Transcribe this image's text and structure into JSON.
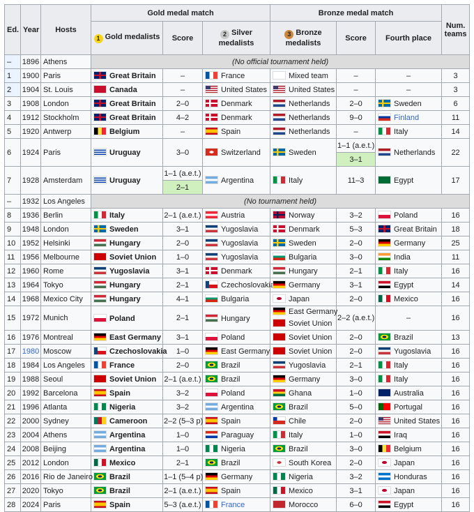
{
  "header": {
    "ed": "Ed.",
    "year": "Year",
    "hosts": "Hosts",
    "gold_match": "Gold medal match",
    "bronze_match": "Bronze medal match",
    "num_teams": "Num. teams",
    "gold": "Gold medalists",
    "score": "Score",
    "silver": "Silver medalists",
    "bronze": "Bronze medalists",
    "score2": "Score",
    "fourth": "Fourth place",
    "medal1": "1",
    "medal2": "2",
    "medal3": "3"
  },
  "rows": [
    {
      "ed": "–",
      "year": "1896",
      "host": "Athens",
      "note": "(No official tournament held)"
    },
    {
      "ed": "1",
      "year": "1900",
      "host": "Paris",
      "gold": [
        "Great Britain",
        "gb"
      ],
      "score": "–",
      "silver": [
        "France",
        "fr"
      ],
      "bronze": [
        [
          "Mixed team",
          "ol"
        ]
      ],
      "score2": "–",
      "fourth": null,
      "teams": "3"
    },
    {
      "ed": "2",
      "year": "1904",
      "host": "St. Louis",
      "gold": [
        "Canada",
        "ca"
      ],
      "score": "–",
      "silver": [
        "United States",
        "us"
      ],
      "bronze": [
        [
          "United States",
          "us"
        ]
      ],
      "score2": "–",
      "fourth": null,
      "teams": "3"
    },
    {
      "ed": "3",
      "year": "1908",
      "host": "London",
      "gold": [
        "Great Britain",
        "gb"
      ],
      "score": "2–0",
      "silver": [
        "Denmark",
        "dk"
      ],
      "bronze": [
        [
          "Netherlands",
          "nl"
        ]
      ],
      "score2": "2–0",
      "fourth": [
        "Sweden",
        "se"
      ],
      "teams": "6"
    },
    {
      "ed": "4",
      "year": "1912",
      "host": "Stockholm",
      "gold": [
        "Great Britain",
        "gb"
      ],
      "score": "4–2",
      "silver": [
        "Denmark",
        "dk"
      ],
      "bronze": [
        [
          "Netherlands",
          "nl"
        ]
      ],
      "score2": "9–0",
      "fourth": [
        "Finland",
        "ru"
      ],
      "fourth_link": true,
      "teams": "11"
    },
    {
      "ed": "5",
      "year": "1920",
      "host": "Antwerp",
      "gold": [
        "Belgium",
        "be"
      ],
      "score": "–",
      "silver": [
        "Spain",
        "es"
      ],
      "bronze": [
        [
          "Netherlands",
          "nl"
        ]
      ],
      "score2": "–",
      "fourth": [
        "Italy",
        "it"
      ],
      "teams": "14"
    },
    {
      "ed": "6",
      "year": "1924",
      "host": "Paris",
      "gold": [
        "Uruguay",
        "uy"
      ],
      "score": "3–0",
      "silver": [
        "Switzerland",
        "ch"
      ],
      "bronze": [
        [
          "Sweden",
          "se"
        ]
      ],
      "score2": "1–1 (a.e.t.)",
      "score2_replay": "3–1",
      "fourth": [
        "Netherlands",
        "nl"
      ],
      "teams": "22"
    },
    {
      "ed": "7",
      "year": "1928",
      "host": "Amsterdam",
      "gold": [
        "Uruguay",
        "uy"
      ],
      "score": "1–1 (a.e.t.)",
      "score_replay": "2–1",
      "silver": [
        "Argentina",
        "ar"
      ],
      "bronze": [
        [
          "Italy",
          "it"
        ]
      ],
      "score2": "11–3",
      "fourth": [
        "Egypt",
        "eg1"
      ],
      "teams": "17"
    },
    {
      "ed": "–",
      "year": "1932",
      "host": "Los Angeles",
      "note": "(No tournament held)"
    },
    {
      "ed": "8",
      "year": "1936",
      "host": "Berlin",
      "gold": [
        "Italy",
        "it"
      ],
      "score": "2–1 (a.e.t.)",
      "silver": [
        "Austria",
        "at"
      ],
      "bronze": [
        [
          "Norway",
          "no"
        ]
      ],
      "score2": "3–2",
      "fourth": [
        "Poland",
        "pl"
      ],
      "teams": "16"
    },
    {
      "ed": "9",
      "year": "1948",
      "host": "London",
      "gold": [
        "Sweden",
        "se"
      ],
      "score": "3–1",
      "silver": [
        "Yugoslavia",
        "yu"
      ],
      "bronze": [
        [
          "Denmark",
          "dk"
        ]
      ],
      "score2": "5–3",
      "fourth": [
        "Great Britain",
        "gb"
      ],
      "teams": "18"
    },
    {
      "ed": "10",
      "year": "1952",
      "host": "Helsinki",
      "gold": [
        "Hungary",
        "hu"
      ],
      "score": "2–0",
      "silver": [
        "Yugoslavia",
        "yu"
      ],
      "bronze": [
        [
          "Sweden",
          "se"
        ]
      ],
      "score2": "2–0",
      "fourth": [
        "Germany",
        "de"
      ],
      "teams": "25"
    },
    {
      "ed": "11",
      "year": "1956",
      "host": "Melbourne",
      "gold": [
        "Soviet Union",
        "su"
      ],
      "score": "1–0",
      "silver": [
        "Yugoslavia",
        "yu"
      ],
      "bronze": [
        [
          "Bulgaria",
          "bg"
        ]
      ],
      "score2": "3–0",
      "fourth": [
        "India",
        "in"
      ],
      "teams": "11"
    },
    {
      "ed": "12",
      "year": "1960",
      "host": "Rome",
      "gold": [
        "Yugoslavia",
        "yu"
      ],
      "score": "3–1",
      "silver": [
        "Denmark",
        "dk"
      ],
      "bronze": [
        [
          "Hungary",
          "hu"
        ]
      ],
      "score2": "2–1",
      "fourth": [
        "Italy",
        "it"
      ],
      "teams": "16"
    },
    {
      "ed": "13",
      "year": "1964",
      "host": "Tokyo",
      "gold": [
        "Hungary",
        "hu"
      ],
      "score": "2–1",
      "silver": [
        "Czechoslovakia",
        "cs"
      ],
      "bronze": [
        [
          "Germany",
          "de"
        ]
      ],
      "score2": "3–1",
      "fourth": [
        "Egypt",
        "eg"
      ],
      "teams": "14"
    },
    {
      "ed": "14",
      "year": "1968",
      "host": "Mexico City",
      "gold": [
        "Hungary",
        "hu"
      ],
      "score": "4–1",
      "silver": [
        "Bulgaria",
        "bg"
      ],
      "bronze": [
        [
          "Japan",
          "jp"
        ]
      ],
      "score2": "2–0",
      "fourth": [
        "Mexico",
        "mx"
      ],
      "teams": "16"
    },
    {
      "ed": "15",
      "year": "1972",
      "host": "Munich",
      "gold": [
        "Poland",
        "pl"
      ],
      "score": "2–1",
      "silver": [
        "Hungary",
        "hu"
      ],
      "bronze": [
        [
          "East Germany",
          "dd"
        ],
        [
          "Soviet Union",
          "su"
        ]
      ],
      "score2": "2–2 (a.e.t.)",
      "fourth": null,
      "teams": "16"
    },
    {
      "ed": "16",
      "year": "1976",
      "host": "Montreal",
      "gold": [
        "East Germany",
        "dd"
      ],
      "score": "3–1",
      "silver": [
        "Poland",
        "pl"
      ],
      "bronze": [
        [
          "Soviet Union",
          "su"
        ]
      ],
      "score2": "2–0",
      "fourth": [
        "Brazil",
        "br"
      ],
      "teams": "13"
    },
    {
      "ed": "17",
      "year": "1980",
      "year_link": true,
      "host": "Moscow",
      "gold": [
        "Czechoslovakia",
        "cs"
      ],
      "score": "1–0",
      "silver": [
        "East Germany",
        "dd"
      ],
      "bronze": [
        [
          "Soviet Union",
          "su"
        ]
      ],
      "score2": "2–0",
      "fourth": [
        "Yugoslavia",
        "yu"
      ],
      "teams": "16"
    },
    {
      "ed": "18",
      "year": "1984",
      "host": "Los Angeles",
      "gold": [
        "France",
        "fr"
      ],
      "score": "2–0",
      "silver": [
        "Brazil",
        "br"
      ],
      "bronze": [
        [
          "Yugoslavia",
          "yu"
        ]
      ],
      "score2": "2–1",
      "fourth": [
        "Italy",
        "it"
      ],
      "teams": "16"
    },
    {
      "ed": "19",
      "year": "1988",
      "host": "Seoul",
      "gold": [
        "Soviet Union",
        "su"
      ],
      "score": "2–1 (a.e.t.)",
      "silver": [
        "Brazil",
        "br"
      ],
      "bronze": [
        [
          "Germany",
          "de"
        ]
      ],
      "score2": "3–0",
      "fourth": [
        "Italy",
        "it"
      ],
      "teams": "16"
    },
    {
      "ed": "20",
      "year": "1992",
      "host": "Barcelona",
      "gold": [
        "Spain",
        "es"
      ],
      "score": "3–2",
      "silver": [
        "Poland",
        "pl"
      ],
      "bronze": [
        [
          "Ghana",
          "gh"
        ]
      ],
      "score2": "1–0",
      "fourth": [
        "Australia",
        "au"
      ],
      "teams": "16"
    },
    {
      "ed": "21",
      "year": "1996",
      "host": "Atlanta",
      "gold": [
        "Nigeria",
        "ng"
      ],
      "score": "3–2",
      "silver": [
        "Argentina",
        "ar"
      ],
      "bronze": [
        [
          "Brazil",
          "br"
        ]
      ],
      "score2": "5–0",
      "fourth": [
        "Portugal",
        "pt"
      ],
      "teams": "16"
    },
    {
      "ed": "22",
      "year": "2000",
      "host": "Sydney",
      "gold": [
        "Cameroon",
        "cm"
      ],
      "score": "2–2 (5–3 p)",
      "silver": [
        "Spain",
        "es"
      ],
      "bronze": [
        [
          "Chile",
          "cl"
        ]
      ],
      "score2": "2–0",
      "fourth": [
        "United States",
        "us"
      ],
      "teams": "16"
    },
    {
      "ed": "23",
      "year": "2004",
      "host": "Athens",
      "gold": [
        "Argentina",
        "ar"
      ],
      "score": "1–0",
      "silver": [
        "Paraguay",
        "py"
      ],
      "bronze": [
        [
          "Italy",
          "it"
        ]
      ],
      "score2": "1–0",
      "fourth": [
        "Iraq",
        "iq"
      ],
      "teams": "16"
    },
    {
      "ed": "24",
      "year": "2008",
      "host": "Beijing",
      "gold": [
        "Argentina",
        "ar"
      ],
      "score": "1–0",
      "silver": [
        "Nigeria",
        "ng"
      ],
      "bronze": [
        [
          "Brazil",
          "br"
        ]
      ],
      "score2": "3–0",
      "fourth": [
        "Belgium",
        "be"
      ],
      "teams": "16"
    },
    {
      "ed": "25",
      "year": "2012",
      "host": "London",
      "gold": [
        "Mexico",
        "mx"
      ],
      "score": "2–1",
      "silver": [
        "Brazil",
        "br"
      ],
      "bronze": [
        [
          "South Korea",
          "kr"
        ]
      ],
      "score2": "2–0",
      "fourth": [
        "Japan",
        "jp"
      ],
      "teams": "16"
    },
    {
      "ed": "26",
      "year": "2016",
      "host": "Rio de Janeiro",
      "gold": [
        "Brazil",
        "br"
      ],
      "score": "1–1 (5–4 p)",
      "silver": [
        "Germany",
        "de"
      ],
      "bronze": [
        [
          "Nigeria",
          "ng"
        ]
      ],
      "score2": "3–2",
      "fourth": [
        "Honduras",
        "hn"
      ],
      "teams": "16"
    },
    {
      "ed": "27",
      "year": "2020",
      "host": "Tokyo",
      "gold": [
        "Brazil",
        "br"
      ],
      "score": "2–1 (a.e.t.)",
      "silver": [
        "Spain",
        "es"
      ],
      "bronze": [
        [
          "Mexico",
          "mx"
        ]
      ],
      "score2": "3–1",
      "fourth": [
        "Japan",
        "jp"
      ],
      "teams": "16"
    },
    {
      "ed": "28",
      "year": "2024",
      "host": "Paris",
      "gold": [
        "Spain",
        "es"
      ],
      "score": "5–3 (a.e.t.)",
      "silver": [
        "France",
        "fr"
      ],
      "silver_link": true,
      "bronze": [
        [
          "Morocco",
          "ma"
        ]
      ],
      "score2": "6–0",
      "fourth": [
        "Egypt",
        "eg"
      ],
      "teams": "16"
    }
  ],
  "empty_cell": "–"
}
